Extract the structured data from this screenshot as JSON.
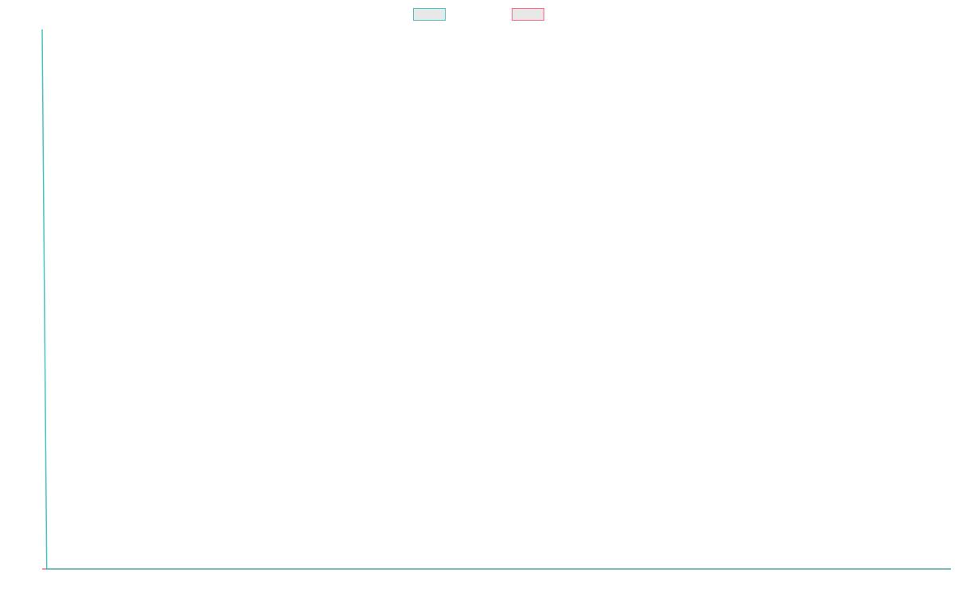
{
  "chart_data": {
    "type": "line",
    "x": [
      0,
      1,
      200
    ],
    "xlim": [
      0,
      200
    ],
    "ylim": [
      0,
      100
    ],
    "legend": "top",
    "series": [
      {
        "color": "rgb(75, 192, 192)",
        "values": [
          100,
          0,
          0
        ]
      },
      {
        "color": "rgb(255, 99, 132)",
        "values": [
          0,
          0,
          0
        ]
      }
    ]
  }
}
